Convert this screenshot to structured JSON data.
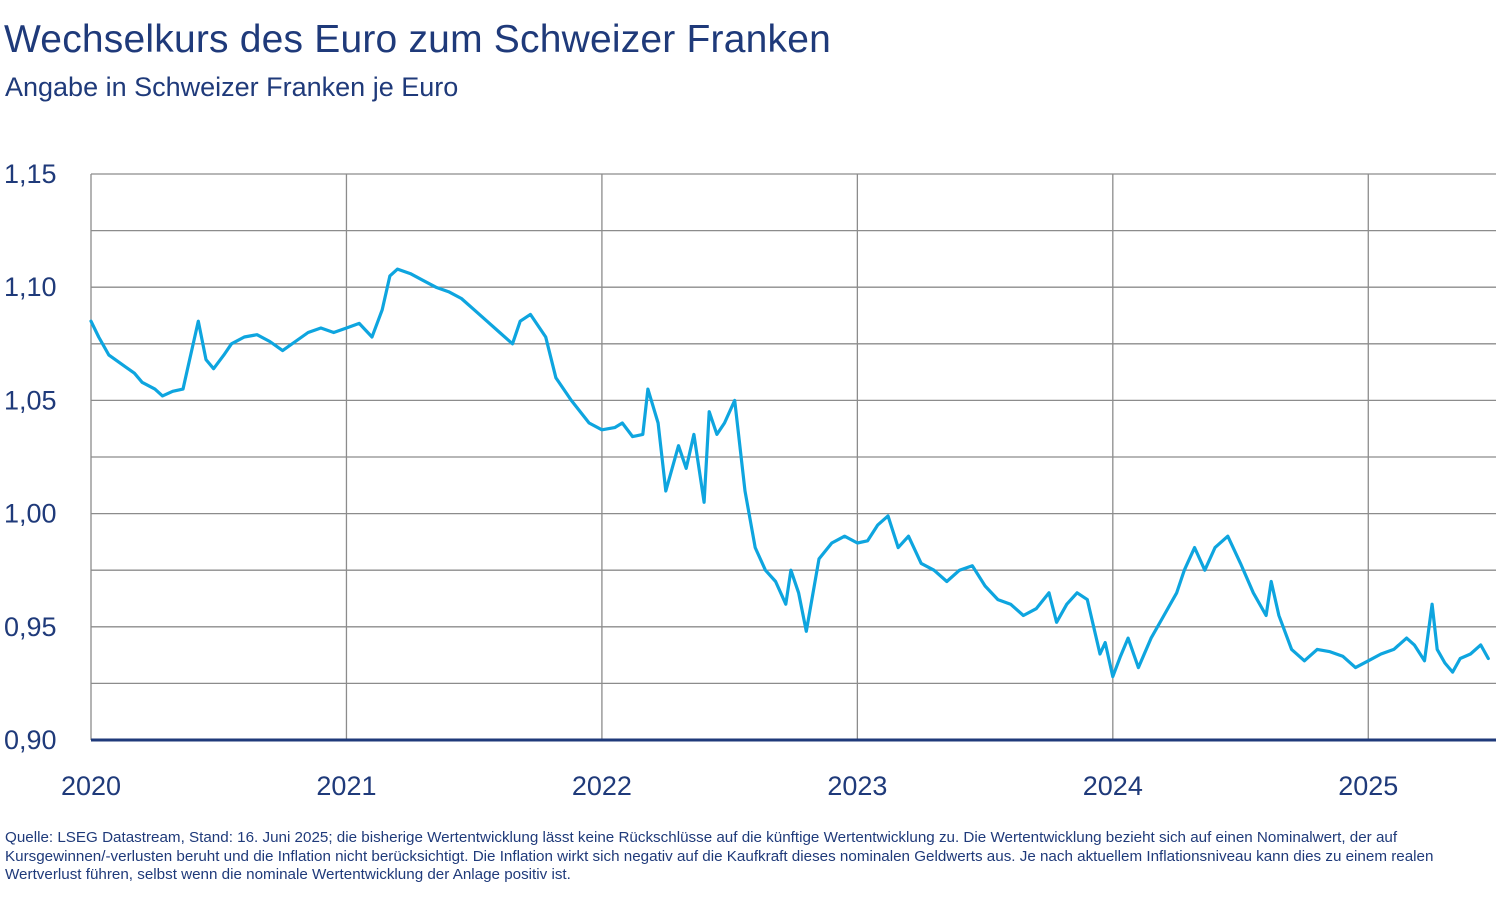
{
  "title": "Wechselkurs des Euro zum Schweizer Franken",
  "subtitle": "Angabe in Schweizer Franken je Euro",
  "source_note": "Quelle: LSEG Datastream, Stand: 16. Juni 2025; die bisherige Wertentwicklung lässt keine Rückschlüsse auf die künftige Wertentwicklung zu. Die Wertentwicklung bezieht sich auf einen Nominalwert, der auf Kursgewinnen/-verlusten beruht und die Inflation nicht berücksichtigt. Die Inflation wirkt sich negativ auf die Kaufkraft dieses nominalen Geldwerts aus. Je nach aktuellem Inflationsniveau kann dies zu einem realen Wertverlust führen, selbst wenn die nominale Wertentwicklung der Anlage positiv ist.",
  "colors": {
    "text": "#1f3a7a",
    "line": "#0ea5df",
    "grid": "#8c8c8c",
    "axis": "#1f3a7a"
  },
  "chart_data": {
    "type": "line",
    "title": "Wechselkurs des Euro zum Schweizer Franken",
    "subtitle": "Angabe in Schweizer Franken je Euro",
    "xlabel": "",
    "ylabel": "",
    "xlim": [
      2020.0,
      2025.5
    ],
    "ylim": [
      0.9,
      1.15
    ],
    "x_ticks": [
      2020,
      2021,
      2022,
      2023,
      2024,
      2025
    ],
    "x_tick_labels": [
      "2020",
      "2021",
      "2022",
      "2023",
      "2024",
      "2025"
    ],
    "y_ticks": [
      0.9,
      0.95,
      1.0,
      1.05,
      1.1,
      1.15
    ],
    "y_tick_labels": [
      "0,90",
      "0,95",
      "1,00",
      "1,05",
      "1,10",
      "1,15"
    ],
    "grid": "horizontal at 0.025 steps, vertical at year starts",
    "legend": "none",
    "series": [
      {
        "name": "",
        "x": [
          2020.0,
          2020.03,
          2020.07,
          2020.12,
          2020.17,
          2020.2,
          2020.25,
          2020.28,
          2020.32,
          2020.36,
          2020.38,
          2020.4,
          2020.42,
          2020.45,
          2020.48,
          2020.52,
          2020.55,
          2020.6,
          2020.65,
          2020.7,
          2020.75,
          2020.8,
          2020.85,
          2020.9,
          2020.95,
          2021.0,
          2021.05,
          2021.1,
          2021.14,
          2021.17,
          2021.2,
          2021.25,
          2021.3,
          2021.35,
          2021.4,
          2021.45,
          2021.5,
          2021.55,
          2021.6,
          2021.65,
          2021.68,
          2021.72,
          2021.78,
          2021.82,
          2021.88,
          2021.95,
          2022.0,
          2022.05,
          2022.08,
          2022.12,
          2022.16,
          2022.18,
          2022.22,
          2022.25,
          2022.3,
          2022.33,
          2022.36,
          2022.4,
          2022.42,
          2022.45,
          2022.48,
          2022.52,
          2022.56,
          2022.6,
          2022.64,
          2022.68,
          2022.72,
          2022.74,
          2022.77,
          2022.8,
          2022.85,
          2022.9,
          2022.95,
          2023.0,
          2023.04,
          2023.08,
          2023.12,
          2023.16,
          2023.2,
          2023.25,
          2023.3,
          2023.35,
          2023.4,
          2023.45,
          2023.5,
          2023.55,
          2023.6,
          2023.65,
          2023.7,
          2023.75,
          2023.78,
          2023.82,
          2023.86,
          2023.9,
          2023.95,
          2023.97,
          2024.0,
          2024.03,
          2024.06,
          2024.1,
          2024.15,
          2024.2,
          2024.25,
          2024.28,
          2024.32,
          2024.36,
          2024.4,
          2024.45,
          2024.5,
          2024.55,
          2024.6,
          2024.62,
          2024.65,
          2024.7,
          2024.75,
          2024.8,
          2024.85,
          2024.9,
          2024.95,
          2025.0,
          2025.05,
          2025.1,
          2025.15,
          2025.18,
          2025.22,
          2025.25,
          2025.27,
          2025.3,
          2025.33,
          2025.36,
          2025.4,
          2025.44,
          2025.47
        ],
        "y": [
          1.085,
          1.078,
          1.07,
          1.066,
          1.062,
          1.058,
          1.055,
          1.052,
          1.054,
          1.055,
          1.065,
          1.075,
          1.085,
          1.068,
          1.064,
          1.07,
          1.075,
          1.078,
          1.079,
          1.076,
          1.072,
          1.076,
          1.08,
          1.082,
          1.08,
          1.082,
          1.084,
          1.078,
          1.09,
          1.105,
          1.108,
          1.106,
          1.103,
          1.1,
          1.098,
          1.095,
          1.09,
          1.085,
          1.08,
          1.075,
          1.085,
          1.088,
          1.078,
          1.06,
          1.05,
          1.04,
          1.037,
          1.038,
          1.04,
          1.034,
          1.035,
          1.055,
          1.04,
          1.01,
          1.03,
          1.02,
          1.035,
          1.005,
          1.045,
          1.035,
          1.04,
          1.05,
          1.01,
          0.985,
          0.975,
          0.97,
          0.96,
          0.975,
          0.965,
          0.948,
          0.98,
          0.987,
          0.99,
          0.987,
          0.988,
          0.995,
          0.999,
          0.985,
          0.99,
          0.978,
          0.975,
          0.97,
          0.975,
          0.977,
          0.968,
          0.962,
          0.96,
          0.955,
          0.958,
          0.965,
          0.952,
          0.96,
          0.965,
          0.962,
          0.938,
          0.943,
          0.928,
          0.937,
          0.945,
          0.932,
          0.945,
          0.955,
          0.965,
          0.975,
          0.985,
          0.975,
          0.985,
          0.99,
          0.978,
          0.965,
          0.955,
          0.97,
          0.955,
          0.94,
          0.935,
          0.94,
          0.939,
          0.937,
          0.932,
          0.935,
          0.938,
          0.94,
          0.945,
          0.942,
          0.935,
          0.96,
          0.94,
          0.934,
          0.93,
          0.936,
          0.938,
          0.942,
          0.936
        ]
      }
    ]
  }
}
